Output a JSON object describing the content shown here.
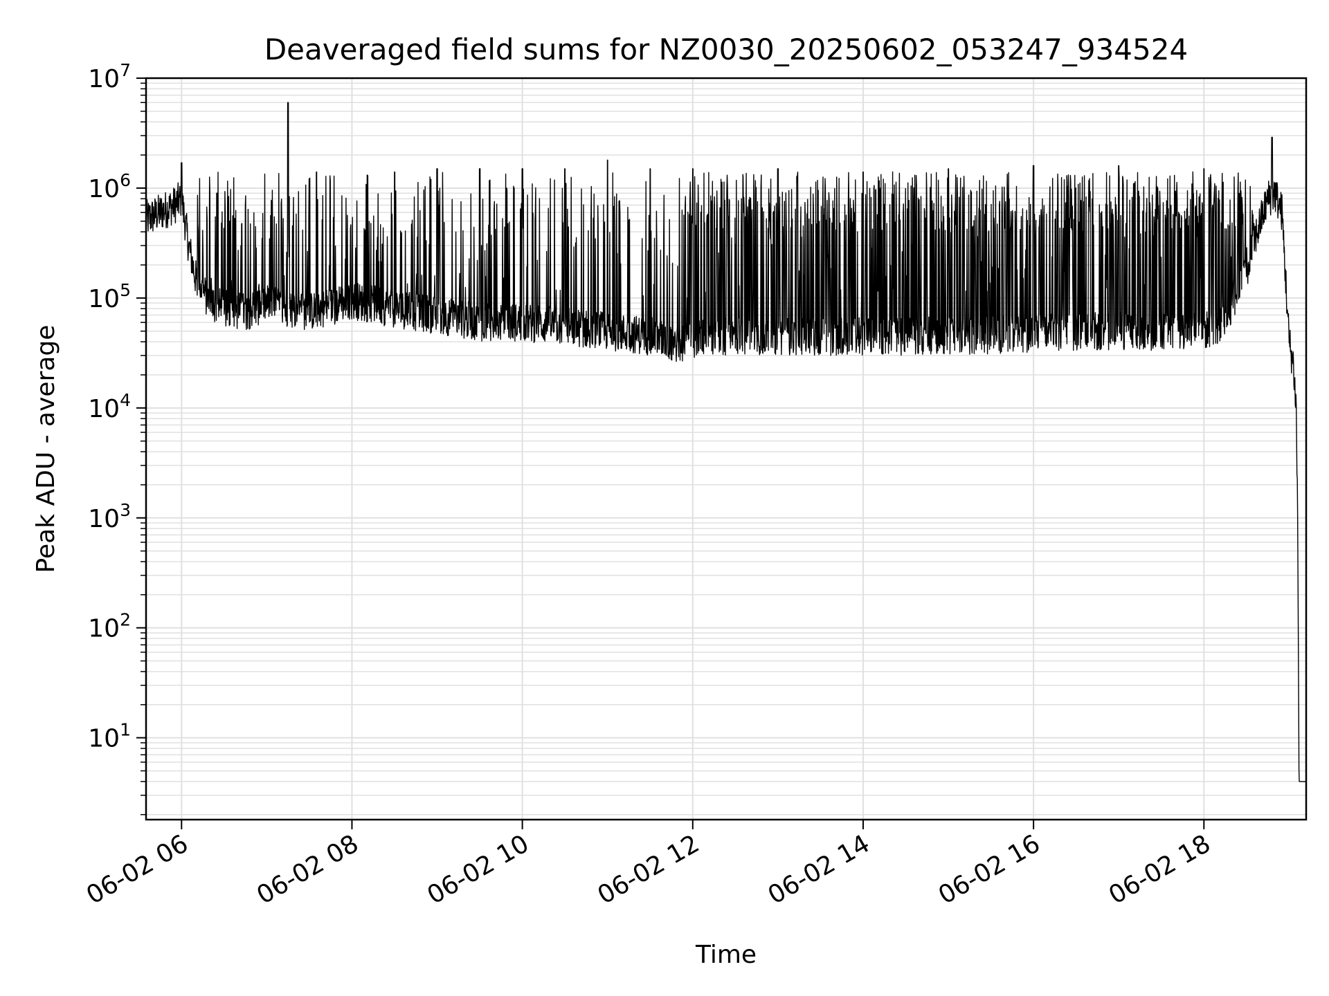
{
  "chart_data": {
    "type": "line",
    "title": "Deaveraged field sums for NZ0030_20250602_053247_934524",
    "xlabel": "Time",
    "ylabel": "Peak ADU - average",
    "yscale": "log",
    "xlim": [
      "2025-06-02 05:35",
      "2025-06-02 19:12"
    ],
    "ylim": [
      1.8,
      10000000
    ],
    "grid": true,
    "line_color": "#000000",
    "grid_color": "#e0e0e0",
    "x_tick_labels": [
      {
        "value": "2025-06-02 06:00",
        "label": "06-02 06"
      },
      {
        "value": "2025-06-02 08:00",
        "label": "06-02 08"
      },
      {
        "value": "2025-06-02 10:00",
        "label": "06-02 10"
      },
      {
        "value": "2025-06-02 12:00",
        "label": "06-02 12"
      },
      {
        "value": "2025-06-02 14:00",
        "label": "06-02 14"
      },
      {
        "value": "2025-06-02 16:00",
        "label": "06-02 16"
      },
      {
        "value": "2025-06-02 18:00",
        "label": "06-02 18"
      }
    ],
    "y_tick_labels": [
      {
        "value": 10,
        "base": "10",
        "exp": "1"
      },
      {
        "value": 100,
        "base": "10",
        "exp": "2"
      },
      {
        "value": 1000,
        "base": "10",
        "exp": "3"
      },
      {
        "value": 10000,
        "base": "10",
        "exp": "4"
      },
      {
        "value": 100000,
        "base": "10",
        "exp": "5"
      },
      {
        "value": 1000000,
        "base": "10",
        "exp": "6"
      },
      {
        "value": 10000000,
        "base": "10",
        "exp": "7"
      }
    ],
    "series": [
      {
        "x": [
          "2025-06-02 05:35",
          "2025-06-02 05:45",
          "2025-06-02 05:55",
          "2025-06-02 06:00",
          "2025-06-02 06:05",
          "2025-06-02 06:10",
          "2025-06-02 06:20",
          "2025-06-02 06:30",
          "2025-06-02 06:45",
          "2025-06-02 07:00",
          "2025-06-02 07:15",
          "2025-06-02 07:30",
          "2025-06-02 08:00",
          "2025-06-02 08:30",
          "2025-06-02 09:00",
          "2025-06-02 09:30",
          "2025-06-02 10:00",
          "2025-06-02 10:30",
          "2025-06-02 11:00",
          "2025-06-02 11:30",
          "2025-06-02 11:50",
          "2025-06-02 12:00",
          "2025-06-02 12:30",
          "2025-06-02 13:00",
          "2025-06-02 14:00",
          "2025-06-02 15:00",
          "2025-06-02 16:00",
          "2025-06-02 17:00",
          "2025-06-02 18:00",
          "2025-06-02 18:15",
          "2025-06-02 18:30",
          "2025-06-02 18:45",
          "2025-06-02 18:50",
          "2025-06-02 18:55",
          "2025-06-02 19:00",
          "2025-06-02 19:03",
          "2025-06-02 19:05",
          "2025-06-02 19:06",
          "2025-06-02 19:07",
          "2025-06-02 19:12"
        ],
        "baseline": [
          520000,
          600000,
          700000,
          800000,
          300000,
          150000,
          90000,
          80000,
          75000,
          90000,
          80000,
          75000,
          95000,
          80000,
          70000,
          60000,
          60000,
          55000,
          50000,
          45000,
          38000,
          42000,
          45000,
          45000,
          45000,
          45000,
          48000,
          50000,
          50000,
          60000,
          200000,
          800000,
          900000,
          600000,
          40000,
          25000,
          10000,
          1000,
          4,
          4
        ]
      }
    ],
    "spikes": [
      {
        "x": "2025-06-02 06:00",
        "y": 1700000
      },
      {
        "x": "2025-06-02 06:25",
        "y": 900000
      },
      {
        "x": "2025-06-02 06:45",
        "y": 700000
      },
      {
        "x": "2025-06-02 07:15",
        "y": 6000000
      },
      {
        "x": "2025-06-02 07:35",
        "y": 1400000
      },
      {
        "x": "2025-06-02 08:30",
        "y": 1400000
      },
      {
        "x": "2025-06-02 09:00",
        "y": 1500000
      },
      {
        "x": "2025-06-02 09:30",
        "y": 1500000
      },
      {
        "x": "2025-06-02 10:00",
        "y": 1500000
      },
      {
        "x": "2025-06-02 10:30",
        "y": 1500000
      },
      {
        "x": "2025-06-02 11:00",
        "y": 1800000
      },
      {
        "x": "2025-06-02 11:30",
        "y": 1500000
      },
      {
        "x": "2025-06-02 12:00",
        "y": 1500000
      },
      {
        "x": "2025-06-02 13:00",
        "y": 1500000
      },
      {
        "x": "2025-06-02 14:00",
        "y": 1400000
      },
      {
        "x": "2025-06-02 15:00",
        "y": 1500000
      },
      {
        "x": "2025-06-02 16:00",
        "y": 1600000
      },
      {
        "x": "2025-06-02 17:00",
        "y": 1600000
      },
      {
        "x": "2025-06-02 18:00",
        "y": 1500000
      },
      {
        "x": "2025-06-02 18:48",
        "y": 2900000
      }
    ]
  }
}
